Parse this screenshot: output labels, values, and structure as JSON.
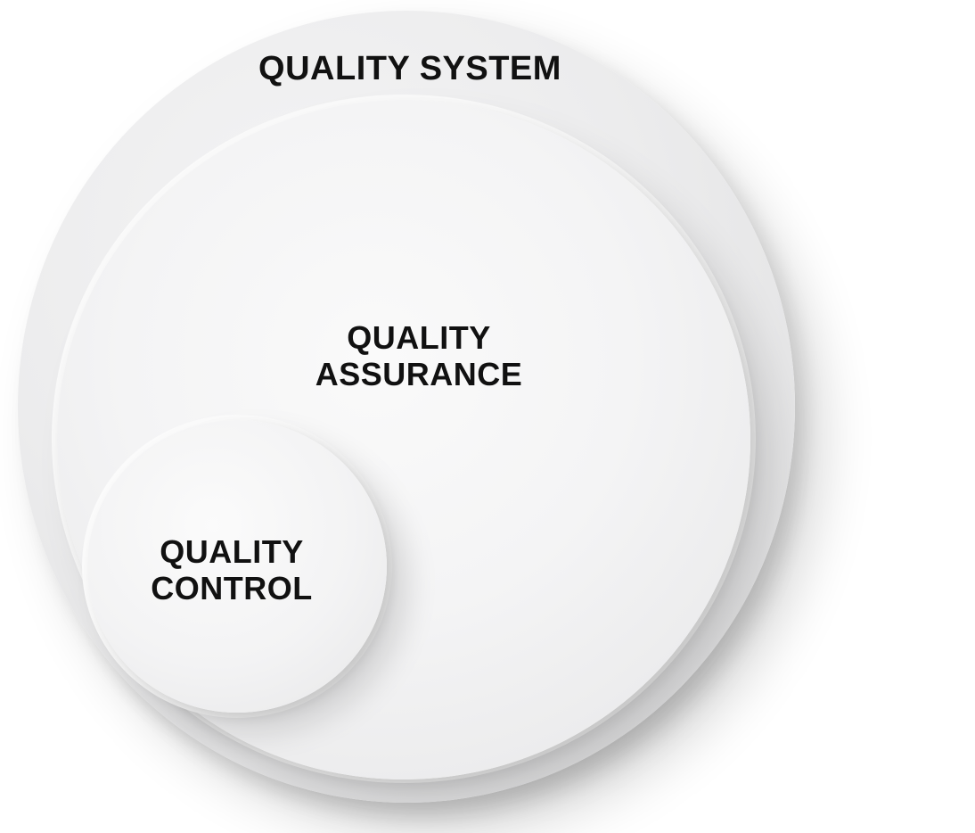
{
  "diagram": {
    "outer": {
      "label": "QUALITY SYSTEM"
    },
    "middle": {
      "label_line1": "QUALITY",
      "label_line2": "ASSURANCE"
    },
    "inner": {
      "label_line1": "QUALITY",
      "label_line2": "CONTROL"
    }
  },
  "colors": {
    "background": "#ffffff",
    "circle_fill": "#ececed",
    "text": "#111111"
  }
}
